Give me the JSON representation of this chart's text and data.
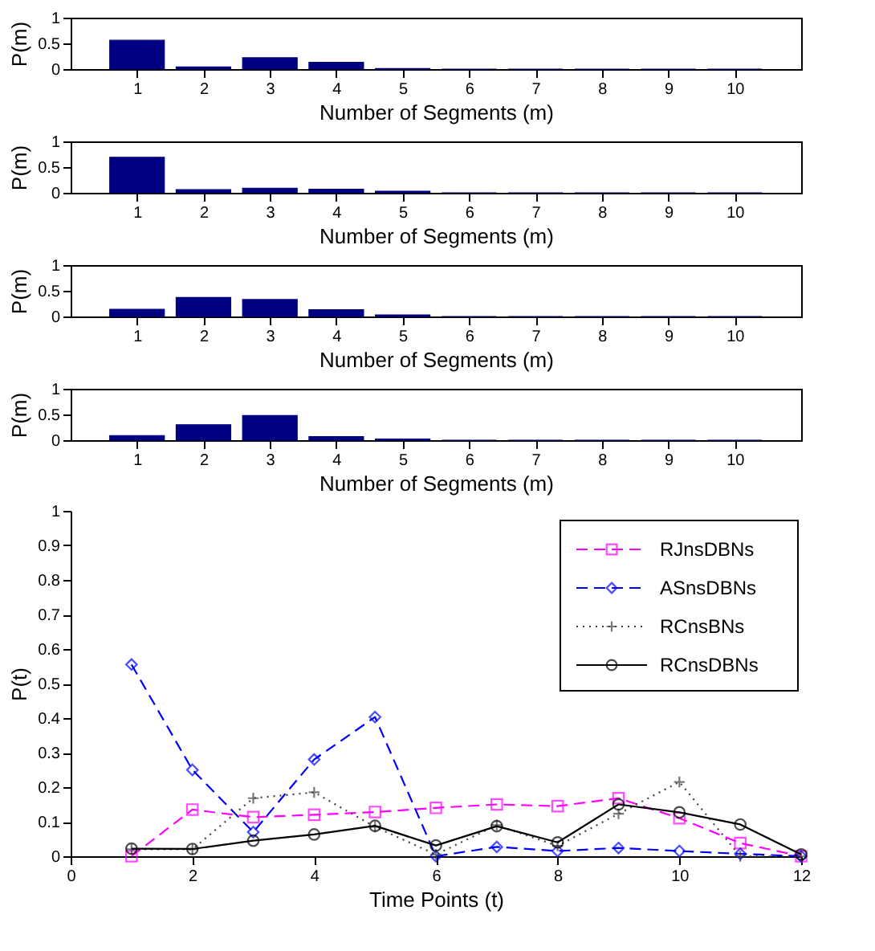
{
  "chart_data": [
    {
      "type": "bar",
      "xlabel": "Number of Segments (m)",
      "ylabel": "P(m)",
      "x": [
        1,
        2,
        3,
        4,
        5,
        6,
        7,
        8,
        9,
        10
      ],
      "values": [
        0.56,
        0.04,
        0.22,
        0.13,
        0.01,
        0,
        0,
        0,
        0,
        0
      ],
      "color": "#000080",
      "xlim": [
        0,
        11
      ],
      "xticks": [
        1,
        2,
        3,
        4,
        5,
        6,
        7,
        8,
        9,
        10
      ],
      "ylim": [
        0,
        1
      ],
      "yticks": [
        0,
        0.5,
        1
      ],
      "grid": false
    },
    {
      "type": "bar",
      "xlabel": "Number of Segments (m)",
      "ylabel": "P(m)",
      "x": [
        1,
        2,
        3,
        4,
        5,
        6,
        7,
        8,
        9,
        10
      ],
      "values": [
        0.69,
        0.06,
        0.09,
        0.07,
        0.03,
        0,
        0,
        0,
        0,
        0
      ],
      "color": "#000080",
      "xlim": [
        0,
        11
      ],
      "xticks": [
        1,
        2,
        3,
        4,
        5,
        6,
        7,
        8,
        9,
        10
      ],
      "ylim": [
        0,
        1
      ],
      "yticks": [
        0,
        0.5,
        1
      ],
      "grid": false
    },
    {
      "type": "bar",
      "xlabel": "Number of Segments (m)",
      "ylabel": "P(m)",
      "x": [
        1,
        2,
        3,
        4,
        5,
        6,
        7,
        8,
        9,
        10
      ],
      "values": [
        0.14,
        0.37,
        0.33,
        0.13,
        0.03,
        0,
        0,
        0,
        0,
        0
      ],
      "color": "#000080",
      "xlim": [
        0,
        11
      ],
      "xticks": [
        1,
        2,
        3,
        4,
        5,
        6,
        7,
        8,
        9,
        10
      ],
      "ylim": [
        0,
        1
      ],
      "yticks": [
        0,
        0.5,
        1
      ],
      "grid": false
    },
    {
      "type": "bar",
      "xlabel": "Number of Segments (m)",
      "ylabel": "P(m)",
      "x": [
        1,
        2,
        3,
        4,
        5,
        6,
        7,
        8,
        9,
        10
      ],
      "values": [
        0.09,
        0.3,
        0.48,
        0.07,
        0.02,
        0,
        0,
        0,
        0,
        0
      ],
      "color": "#000080",
      "xlim": [
        0,
        11
      ],
      "xticks": [
        1,
        2,
        3,
        4,
        5,
        6,
        7,
        8,
        9,
        10
      ],
      "ylim": [
        0,
        1
      ],
      "yticks": [
        0,
        0.5,
        1
      ],
      "grid": false
    },
    {
      "type": "line",
      "xlabel": "Time Points (t)",
      "ylabel": "P(t)",
      "x": [
        1,
        2,
        3,
        4,
        5,
        6,
        7,
        8,
        9,
        10,
        11,
        12
      ],
      "xlim": [
        0,
        12
      ],
      "xticks": [
        0,
        2,
        4,
        6,
        8,
        10,
        12
      ],
      "ylim": [
        0,
        1
      ],
      "yticks": [
        0,
        0.1,
        0.2,
        0.3,
        0.4,
        0.5,
        0.6,
        0.7,
        0.8,
        0.9,
        1
      ],
      "grid": false,
      "legend": "top right",
      "series": [
        {
          "name": "RJnsDBNs",
          "color": "#ff00ff",
          "marker": "square",
          "line_style": "dashed",
          "values": [
            0,
            0.135,
            0.113,
            0.12,
            0.128,
            0.14,
            0.15,
            0.145,
            0.168,
            0.11,
            0.038,
            0
          ]
        },
        {
          "name": "ASnsDBNs",
          "color": "#0000ff",
          "marker": "diamond",
          "line_style": "dashed",
          "values": [
            0.555,
            0.25,
            0.07,
            0.28,
            0.403,
            0,
            0.027,
            0.015,
            0.024,
            0.015,
            0.007,
            0
          ]
        },
        {
          "name": "RCnsBNs",
          "color": "#404040",
          "marker": "cross",
          "line_style": "dotted",
          "values": [
            0.02,
            0.02,
            0.168,
            0.185,
            0.085,
            0.005,
            0.09,
            0.03,
            0.123,
            0.215,
            0,
            0
          ]
        },
        {
          "name": "RCnsDBNs",
          "color": "#000000",
          "marker": "circle",
          "line_style": "solid",
          "values": [
            0.022,
            0.021,
            0.045,
            0.063,
            0.088,
            0.031,
            0.087,
            0.04,
            0.15,
            0.127,
            0.092,
            0.005
          ]
        }
      ]
    }
  ]
}
